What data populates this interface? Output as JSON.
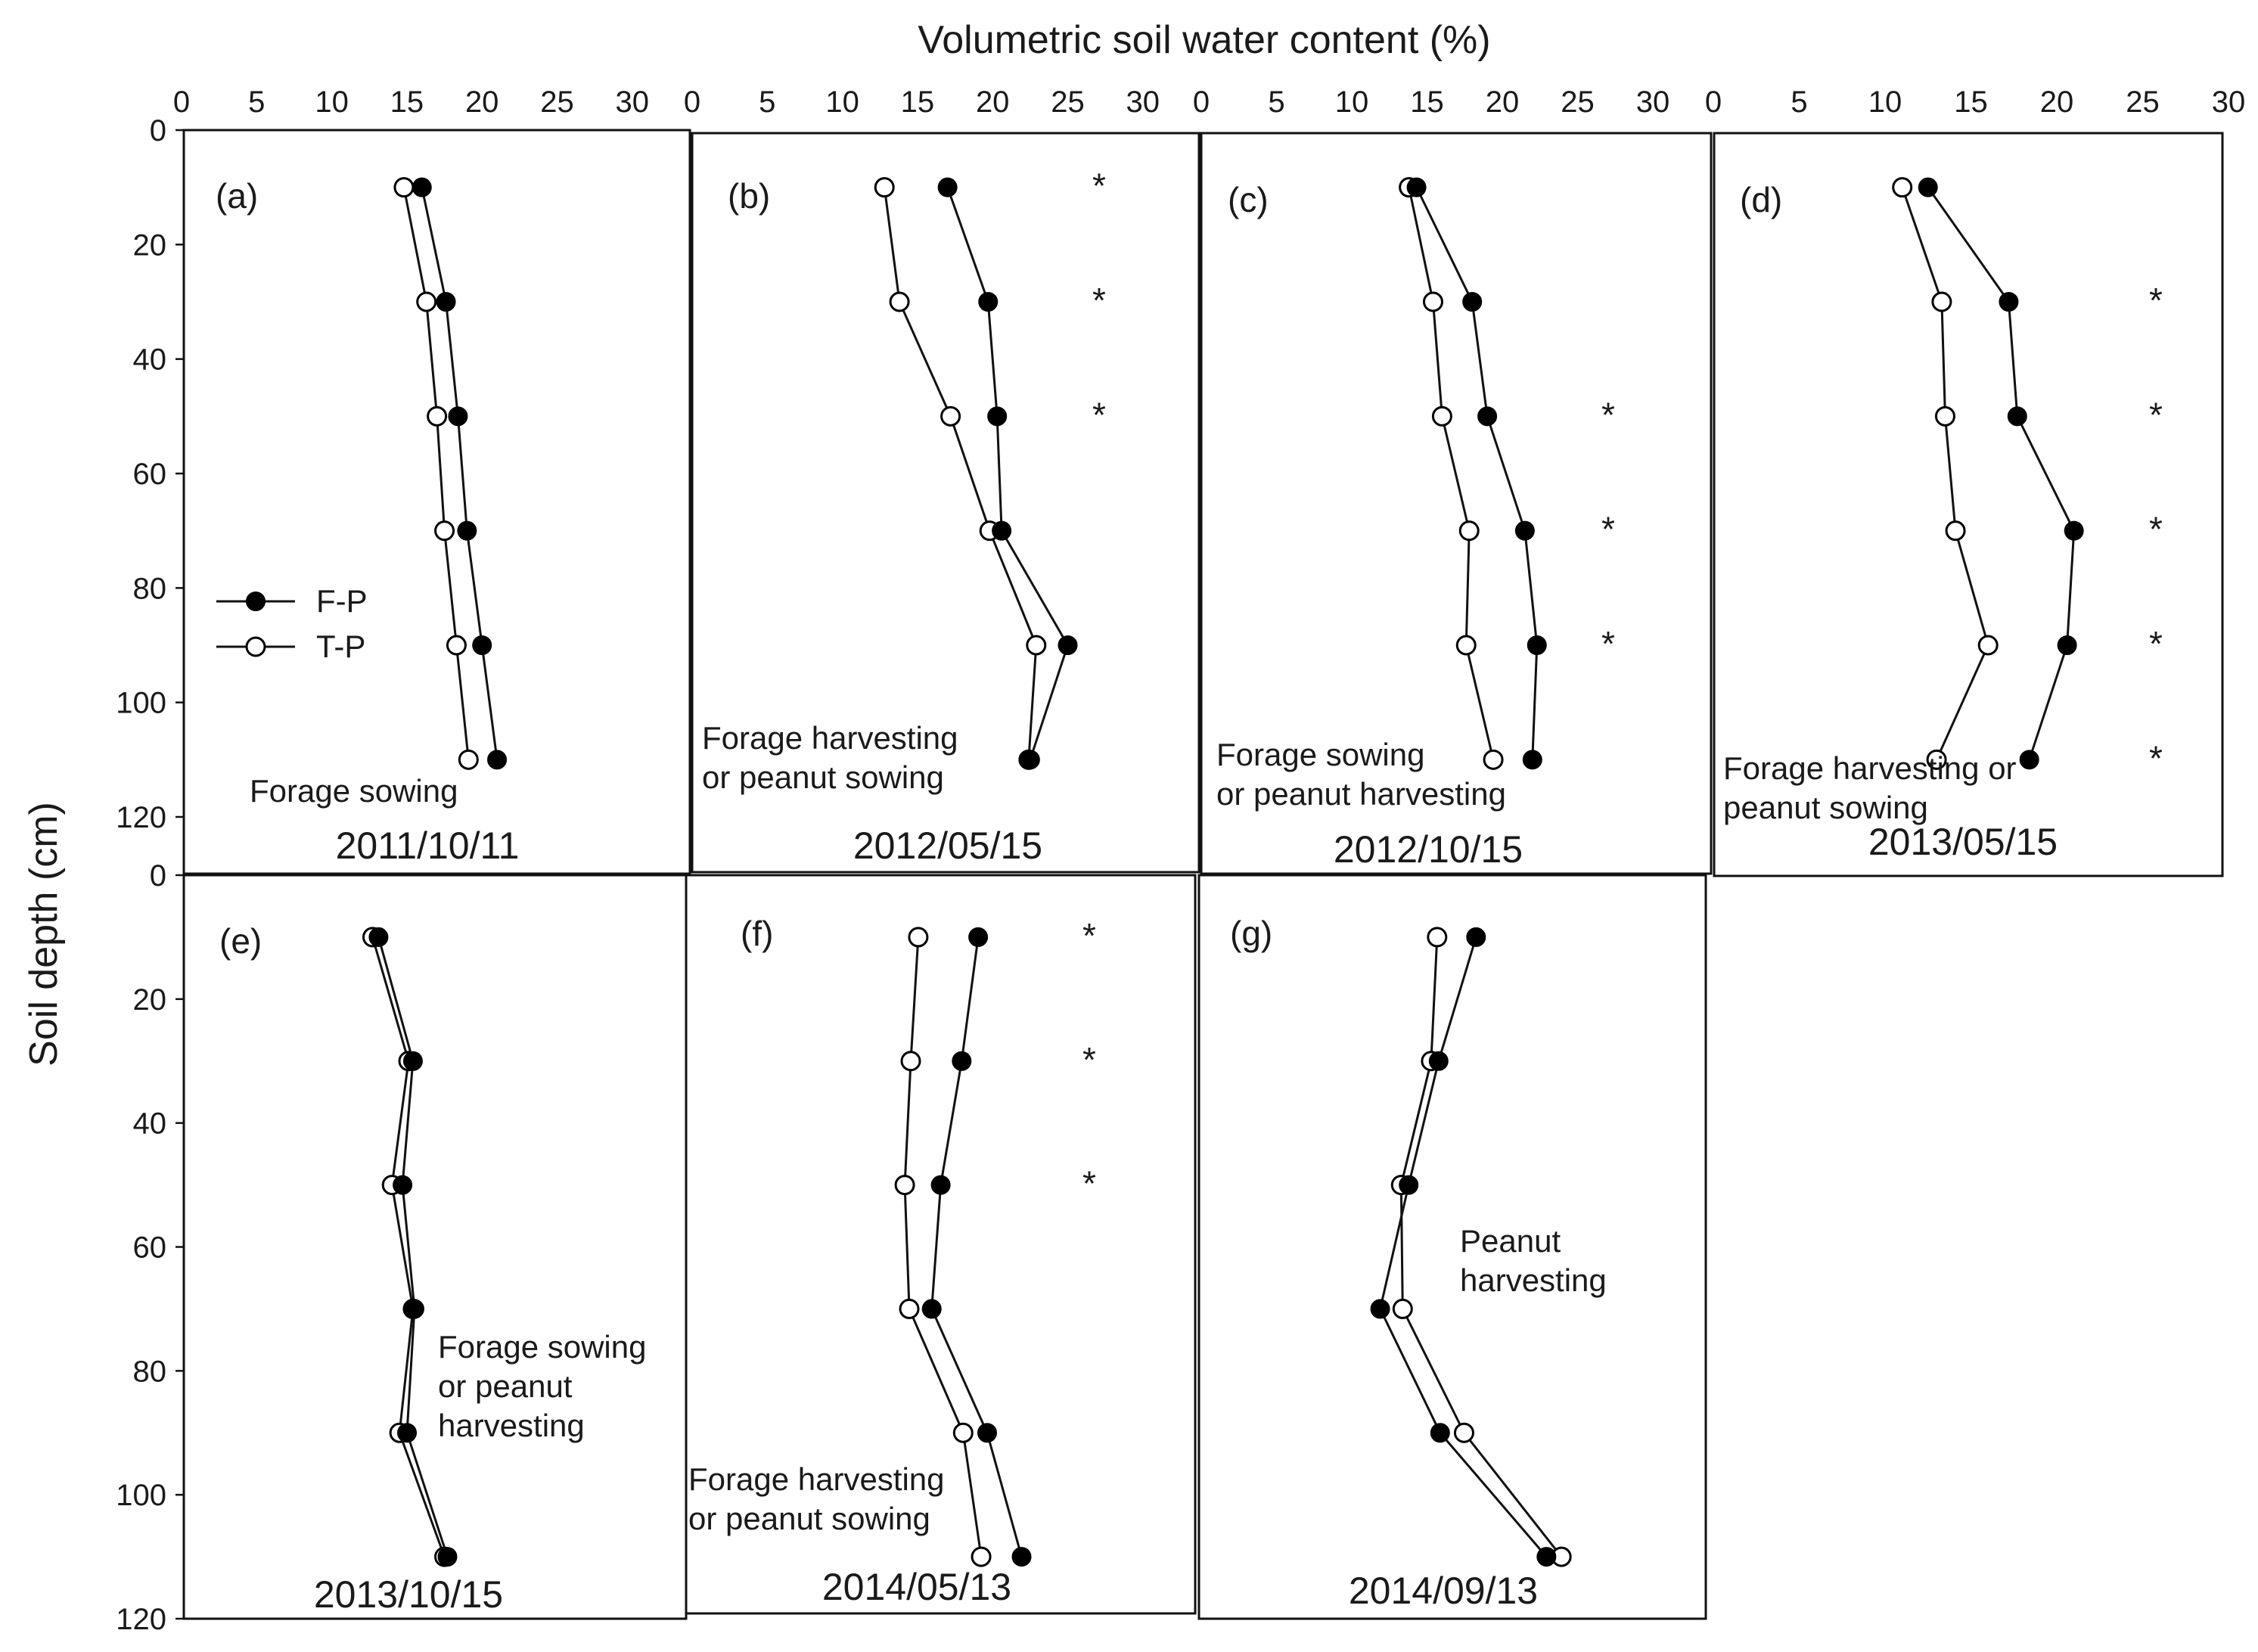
{
  "figure": {
    "xlabel": "Volumetric soil water content (%)",
    "ylabel": "Soil depth (cm)"
  },
  "legend": {
    "entries": [
      {
        "name": "F-P",
        "marker": "filled-circle"
      },
      {
        "name": "T-P",
        "marker": "open-circle"
      }
    ]
  },
  "colors": {
    "fp_marker": "#000000",
    "tp_marker": "#ffffff",
    "line": "#111111"
  },
  "chart_data": [
    {
      "type": "line",
      "panel": "(a)",
      "date": "2011/10/11",
      "note": [
        "Forage sowing"
      ],
      "x_ticks": [
        "0",
        "5",
        "10",
        "15",
        "20",
        "25",
        "30"
      ],
      "y_ticks": [
        "0",
        "20",
        "40",
        "60",
        "80",
        "100",
        "120"
      ],
      "xlim": [
        0,
        30
      ],
      "ylim": [
        0,
        120
      ],
      "depth": [
        10,
        30,
        50,
        70,
        90,
        110
      ],
      "series": [
        {
          "name": "F-P",
          "values": [
            16.0,
            17.6,
            18.4,
            19.0,
            20.0,
            21.0
          ]
        },
        {
          "name": "T-P",
          "values": [
            14.8,
            16.3,
            17.0,
            17.5,
            18.3,
            19.1
          ]
        }
      ],
      "significant_depths": []
    },
    {
      "type": "line",
      "panel": "(b)",
      "date": "2012/05/15",
      "note": [
        "Forage harvesting",
        "or peanut sowing"
      ],
      "x_ticks": [
        "0",
        "5",
        "10",
        "15",
        "20",
        "25",
        "30"
      ],
      "xlim": [
        0,
        30
      ],
      "ylim": [
        0,
        120
      ],
      "depth": [
        10,
        30,
        50,
        70,
        90,
        110
      ],
      "series": [
        {
          "name": "F-P",
          "values": [
            17.0,
            19.7,
            20.3,
            20.6,
            25.0,
            22.5
          ]
        },
        {
          "name": "T-P",
          "values": [
            12.8,
            13.8,
            17.2,
            19.8,
            22.9,
            22.4
          ]
        }
      ],
      "significant_depths": [
        10,
        30,
        50
      ]
    },
    {
      "type": "line",
      "panel": "(c)",
      "date": "2012/10/15",
      "note": [
        "Forage sowing",
        "or peanut harvesting"
      ],
      "x_ticks": [
        "0",
        "5",
        "10",
        "15",
        "20",
        "25",
        "30"
      ],
      "xlim": [
        0,
        30
      ],
      "ylim": [
        0,
        120
      ],
      "depth": [
        10,
        30,
        50,
        70,
        90,
        110
      ],
      "series": [
        {
          "name": "F-P",
          "values": [
            14.3,
            18.0,
            19.0,
            21.5,
            22.3,
            22.0
          ]
        },
        {
          "name": "T-P",
          "values": [
            13.8,
            15.4,
            16.0,
            17.8,
            17.6,
            19.4
          ]
        }
      ],
      "significant_depths": [
        50,
        70,
        90
      ]
    },
    {
      "type": "line",
      "panel": "(d)",
      "date": "2013/05/15",
      "note": [
        "Forage harvesting or",
        "peanut sowing"
      ],
      "x_ticks": [
        "0",
        "5",
        "10",
        "15",
        "20",
        "25",
        "30"
      ],
      "xlim": [
        0,
        30
      ],
      "ylim": [
        0,
        120
      ],
      "depth": [
        10,
        30,
        50,
        70,
        90,
        110
      ],
      "series": [
        {
          "name": "F-P",
          "values": [
            12.5,
            17.2,
            17.7,
            21.0,
            20.6,
            18.4
          ]
        },
        {
          "name": "T-P",
          "values": [
            11.0,
            13.3,
            13.5,
            14.1,
            16.0,
            13.0
          ]
        }
      ],
      "significant_depths": [
        30,
        50,
        70,
        90,
        110
      ]
    },
    {
      "type": "line",
      "panel": "(e)",
      "date": "2013/10/15",
      "note": [
        "Forage sowing",
        "or peanut",
        "harvesting"
      ],
      "y_ticks": [
        "0",
        "20",
        "40",
        "60",
        "80",
        "100",
        "120"
      ],
      "xlim": [
        0,
        30
      ],
      "ylim": [
        0,
        120
      ],
      "depth": [
        10,
        30,
        50,
        70,
        90,
        110
      ],
      "series": [
        {
          "name": "F-P",
          "values": [
            13.0,
            15.3,
            14.6,
            15.4,
            14.9,
            17.6
          ]
        },
        {
          "name": "T-P",
          "values": [
            12.6,
            15.0,
            13.9,
            15.3,
            14.4,
            17.4
          ]
        }
      ],
      "significant_depths": []
    },
    {
      "type": "line",
      "panel": "(f)",
      "date": "2014/05/13",
      "note": [
        "Forage harvesting",
        "or peanut sowing"
      ],
      "xlim": [
        0,
        30
      ],
      "ylim": [
        0,
        120
      ],
      "depth": [
        10,
        30,
        50,
        70,
        90,
        110
      ],
      "series": [
        {
          "name": "F-P",
          "values": [
            19.5,
            18.4,
            17.0,
            16.4,
            20.1,
            22.4
          ]
        },
        {
          "name": "T-P",
          "values": [
            15.5,
            15.0,
            14.6,
            14.9,
            18.5,
            19.7
          ]
        }
      ],
      "significant_depths": [
        10,
        30,
        50
      ]
    },
    {
      "type": "line",
      "panel": "(g)",
      "date": "2014/09/13",
      "note": [
        "Peanut",
        "harvesting"
      ],
      "xlim": [
        0,
        30
      ],
      "ylim": [
        0,
        120
      ],
      "depth": [
        10,
        30,
        50,
        70,
        90,
        110
      ],
      "series": [
        {
          "name": "F-P",
          "values": [
            18.5,
            16.0,
            14.0,
            12.1,
            16.1,
            23.2
          ]
        },
        {
          "name": "T-P",
          "values": [
            15.9,
            15.5,
            13.5,
            13.6,
            17.7,
            24.2
          ]
        }
      ],
      "significant_depths": []
    }
  ]
}
